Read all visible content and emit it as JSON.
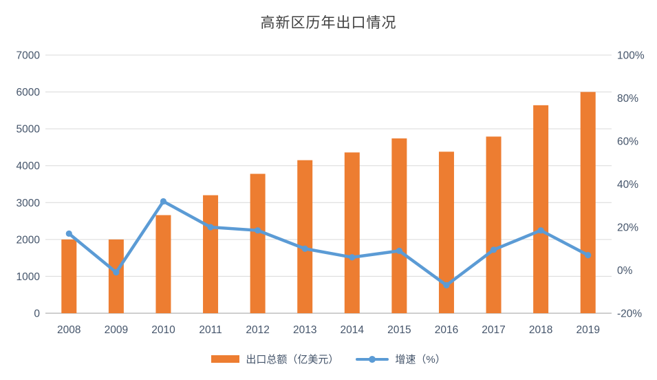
{
  "chart_data": {
    "type": "bar+line combo",
    "title": "高新区历年出口情况",
    "categories": [
      "2008",
      "2009",
      "2010",
      "2011",
      "2012",
      "2013",
      "2014",
      "2015",
      "2016",
      "2017",
      "2018",
      "2019"
    ],
    "series": [
      {
        "name": "出口总额（亿美元）",
        "type": "bar",
        "axis": "left",
        "color": "#ED7D31",
        "values": [
          2000,
          2000,
          2660,
          3200,
          3780,
          4150,
          4360,
          4740,
          4380,
          4790,
          5640,
          6000
        ]
      },
      {
        "name": "增速（%）",
        "type": "line",
        "axis": "right",
        "color": "#5B9BD5",
        "values": [
          17,
          -1,
          32,
          20,
          18.5,
          10,
          6,
          9,
          -7,
          9.5,
          18.5,
          7
        ]
      }
    ],
    "left_axis": {
      "min": 0,
      "max": 7000,
      "step": 1000,
      "labels": [
        "0",
        "1000",
        "2000",
        "3000",
        "4000",
        "5000",
        "6000",
        "7000"
      ]
    },
    "right_axis": {
      "min": -20,
      "max": 100,
      "step": 20,
      "labels": [
        "-20%",
        "0%",
        "20%",
        "40%",
        "60%",
        "80%",
        "100%"
      ]
    },
    "grid": true,
    "legend_position": "bottom",
    "colors": {
      "gridline": "#D9D9D9",
      "axis_line": "#BFBFBF",
      "tick_label": "#44546A",
      "title": "#404040",
      "background": "#FFFFFF"
    }
  }
}
